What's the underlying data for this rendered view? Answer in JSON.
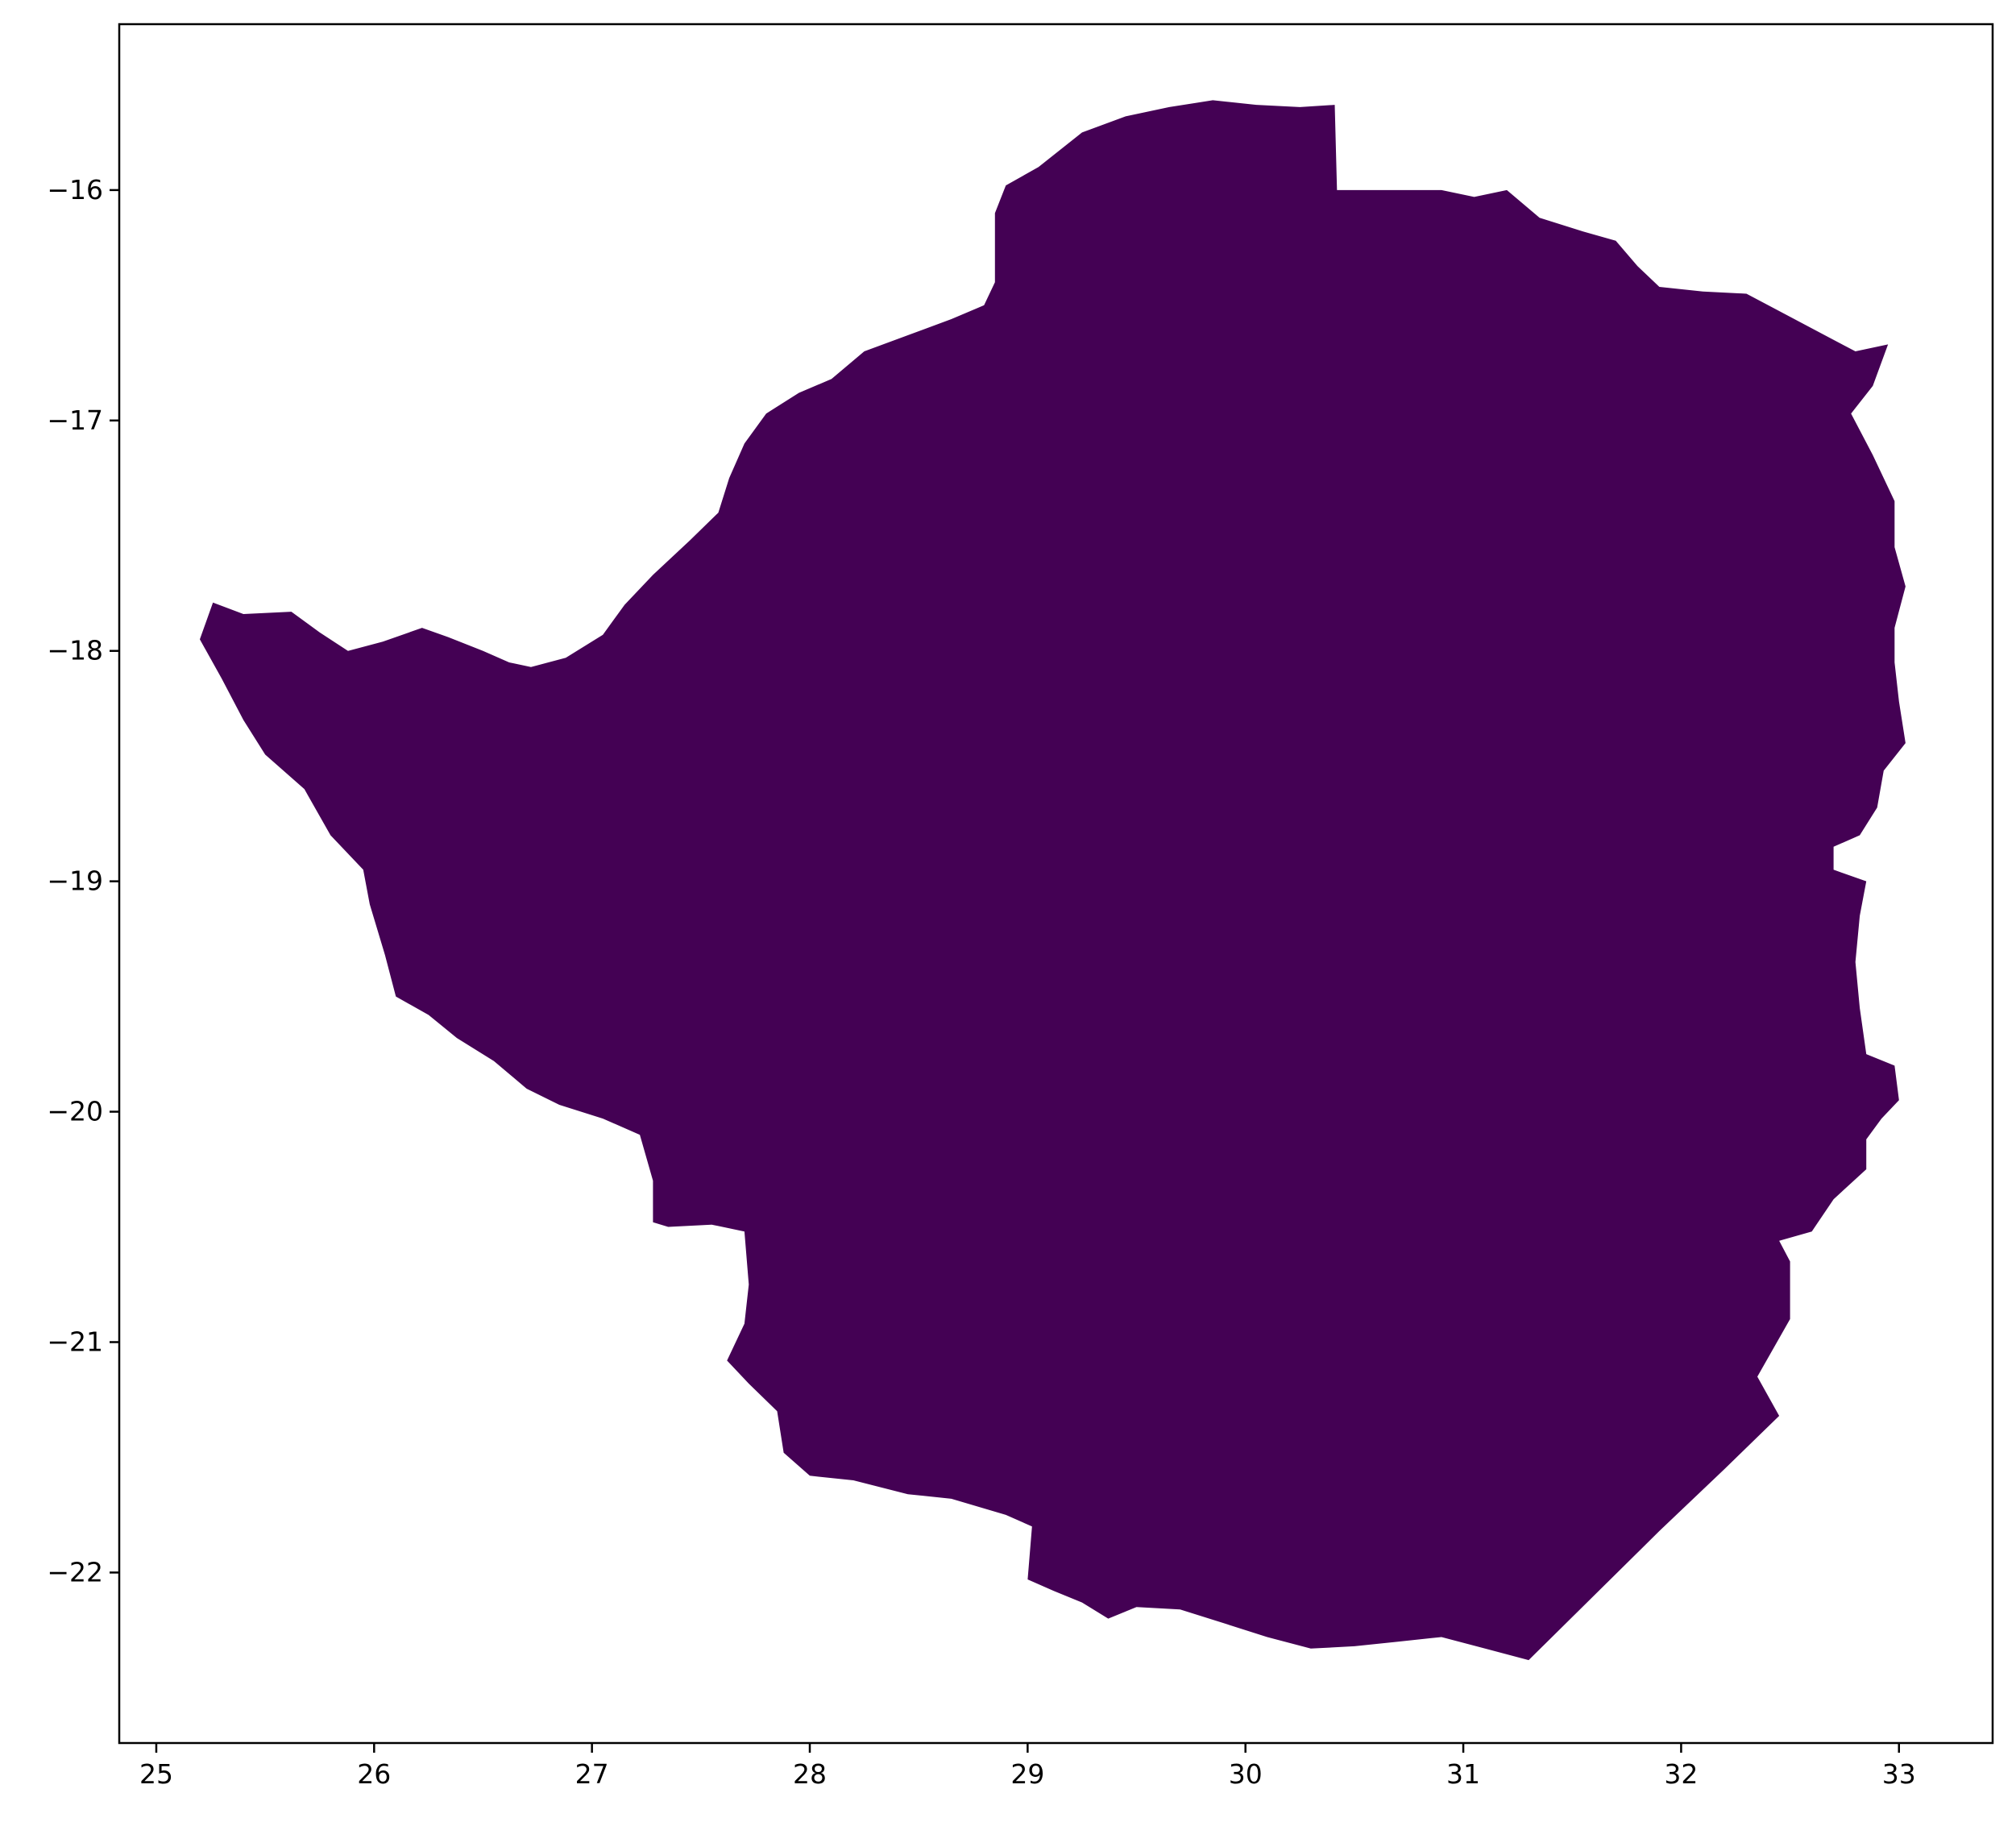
{
  "chart_data": {
    "type": "map",
    "xlim": [
      24.83,
      33.43
    ],
    "ylim": [
      -22.74,
      -15.28
    ],
    "x_ticks": [
      25,
      26,
      27,
      28,
      29,
      30,
      31,
      32,
      33
    ],
    "y_ticks": [
      -16,
      -17,
      -18,
      -19,
      -20,
      -21,
      -22
    ],
    "x_tick_labels": [
      "25",
      "26",
      "27",
      "28",
      "29",
      "30",
      "31",
      "32",
      "33"
    ],
    "y_tick_labels": [
      "−16",
      "−17",
      "−18",
      "−19",
      "−20",
      "−21",
      "−22"
    ],
    "grid": false,
    "fill_color": "#440154",
    "regions": [
      {
        "outline": [
          [
            25.26,
            -17.79
          ],
          [
            25.4,
            -17.84
          ],
          [
            25.62,
            -17.83
          ],
          [
            25.75,
            -17.92
          ],
          [
            25.88,
            -18.0
          ],
          [
            26.04,
            -17.96
          ],
          [
            26.22,
            -17.9
          ],
          [
            26.34,
            -17.94
          ],
          [
            26.5,
            -18.0
          ],
          [
            26.62,
            -18.05
          ],
          [
            26.72,
            -18.07
          ],
          [
            26.88,
            -18.03
          ],
          [
            27.05,
            -17.93
          ],
          [
            27.15,
            -17.8
          ],
          [
            27.28,
            -17.67
          ],
          [
            27.45,
            -17.52
          ],
          [
            27.58,
            -17.4
          ],
          [
            27.63,
            -17.25
          ],
          [
            27.7,
            -17.1
          ],
          [
            27.8,
            -16.97
          ],
          [
            27.95,
            -16.88
          ],
          [
            28.1,
            -16.82
          ],
          [
            28.25,
            -16.7
          ],
          [
            28.45,
            -16.63
          ],
          [
            28.65,
            -16.56
          ],
          [
            28.8,
            -16.5
          ],
          [
            28.85,
            -16.4
          ],
          [
            28.85,
            -16.25
          ],
          [
            28.85,
            -16.1
          ],
          [
            28.9,
            -15.98
          ],
          [
            29.05,
            -15.9
          ],
          [
            29.25,
            -15.75
          ],
          [
            29.45,
            -15.68
          ],
          [
            29.65,
            -15.64
          ],
          [
            29.85,
            -15.61
          ],
          [
            30.05,
            -15.63
          ],
          [
            30.25,
            -15.64
          ],
          [
            30.41,
            -15.63
          ],
          [
            30.42,
            -16.0
          ],
          [
            30.7,
            -16.0
          ],
          [
            30.9,
            -16.0
          ],
          [
            31.05,
            -16.03
          ],
          [
            31.2,
            -16.0
          ],
          [
            31.35,
            -16.12
          ],
          [
            31.55,
            -16.18
          ],
          [
            31.7,
            -16.22
          ],
          [
            31.8,
            -16.33
          ],
          [
            31.9,
            -16.42
          ],
          [
            32.1,
            -16.44
          ],
          [
            32.3,
            -16.45
          ],
          [
            32.5,
            -16.55
          ],
          [
            32.7,
            -16.65
          ],
          [
            32.8,
            -16.7
          ],
          [
            32.95,
            -16.67
          ],
          [
            32.88,
            -16.85
          ],
          [
            32.78,
            -16.97
          ],
          [
            32.88,
            -17.15
          ],
          [
            32.98,
            -17.35
          ],
          [
            32.98,
            -17.55
          ],
          [
            33.03,
            -17.72
          ],
          [
            32.98,
            -17.9
          ],
          [
            32.98,
            -18.05
          ],
          [
            33.0,
            -18.22
          ],
          [
            33.03,
            -18.4
          ],
          [
            32.93,
            -18.52
          ],
          [
            32.9,
            -18.68
          ],
          [
            32.82,
            -18.8
          ],
          [
            32.7,
            -18.85
          ],
          [
            32.7,
            -18.95
          ],
          [
            32.85,
            -19.0
          ],
          [
            32.82,
            -19.15
          ],
          [
            32.8,
            -19.35
          ],
          [
            32.82,
            -19.55
          ],
          [
            32.85,
            -19.75
          ],
          [
            32.98,
            -19.8
          ],
          [
            33.0,
            -19.95
          ],
          [
            32.92,
            -20.03
          ],
          [
            32.85,
            -20.12
          ],
          [
            32.85,
            -20.25
          ],
          [
            32.7,
            -20.38
          ],
          [
            32.6,
            -20.52
          ],
          [
            32.45,
            -20.56
          ],
          [
            32.5,
            -20.65
          ],
          [
            32.5,
            -20.9
          ],
          [
            32.35,
            -21.15
          ],
          [
            32.45,
            -21.32
          ],
          [
            32.2,
            -21.55
          ],
          [
            31.9,
            -21.82
          ],
          [
            31.6,
            -22.1
          ],
          [
            31.3,
            -22.38
          ],
          [
            31.1,
            -22.33
          ],
          [
            30.9,
            -22.28
          ],
          [
            30.7,
            -22.3
          ],
          [
            30.5,
            -22.32
          ],
          [
            30.3,
            -22.33
          ],
          [
            30.1,
            -22.28
          ],
          [
            29.9,
            -22.22
          ],
          [
            29.7,
            -22.16
          ],
          [
            29.5,
            -22.15
          ],
          [
            29.37,
            -22.2
          ],
          [
            29.25,
            -22.13
          ],
          [
            29.12,
            -22.08
          ],
          [
            29.0,
            -22.03
          ],
          [
            29.02,
            -21.8
          ],
          [
            28.9,
            -21.75
          ],
          [
            28.65,
            -21.68
          ],
          [
            28.45,
            -21.66
          ],
          [
            28.2,
            -21.6
          ],
          [
            28.0,
            -21.58
          ],
          [
            27.88,
            -21.48
          ],
          [
            27.85,
            -21.3
          ],
          [
            27.72,
            -21.18
          ],
          [
            27.62,
            -21.08
          ],
          [
            27.7,
            -20.92
          ],
          [
            27.72,
            -20.75
          ],
          [
            27.7,
            -20.52
          ],
          [
            27.55,
            -20.49
          ],
          [
            27.35,
            -20.5
          ],
          [
            27.28,
            -20.48
          ],
          [
            27.28,
            -20.3
          ],
          [
            27.22,
            -20.1
          ],
          [
            27.05,
            -20.03
          ],
          [
            26.85,
            -19.97
          ],
          [
            26.7,
            -19.9
          ],
          [
            26.55,
            -19.78
          ],
          [
            26.38,
            -19.68
          ],
          [
            26.25,
            -19.58
          ],
          [
            26.1,
            -19.5
          ],
          [
            26.05,
            -19.32
          ],
          [
            25.98,
            -19.1
          ],
          [
            25.95,
            -18.95
          ],
          [
            25.8,
            -18.8
          ],
          [
            25.68,
            -18.6
          ],
          [
            25.5,
            -18.45
          ],
          [
            25.4,
            -18.3
          ],
          [
            25.3,
            -18.12
          ],
          [
            25.2,
            -17.95
          ],
          [
            25.26,
            -17.79
          ]
        ]
      }
    ]
  }
}
